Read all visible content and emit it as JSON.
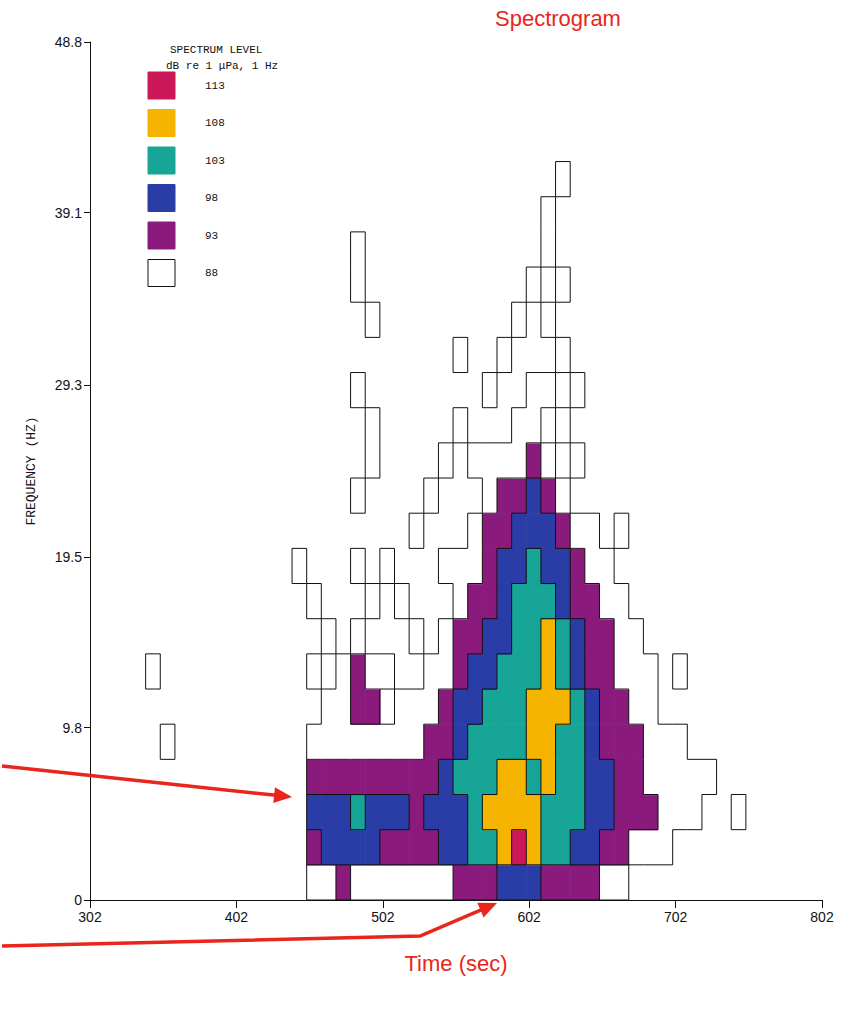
{
  "chart_data": {
    "type": "heatmap",
    "title": "Spectrogram",
    "x_label": "Time (sec)",
    "y_label": "FREQUENCY (HZ)",
    "xlim": [
      302,
      802
    ],
    "xticks": [
      302,
      402,
      502,
      602,
      702,
      802
    ],
    "ylim": [
      0,
      48.8
    ],
    "yticks": [
      0,
      9.8,
      19.5,
      29.3,
      39.1,
      48.8
    ],
    "grid": false,
    "legend": "upper left",
    "colorbar": {
      "title": [
        "SPECTRUM LEVEL",
        "dB re 1 μPa, 1 Hz"
      ],
      "levels": [
        113,
        108,
        103,
        98,
        93,
        88
      ],
      "colors": [
        "#cc1858",
        "#f5b400",
        "#16a596",
        "#2a3ca6",
        "#8a1a7c",
        "#ffffff"
      ]
    },
    "cells": [
      [
        345,
        13,
        90
      ],
      [
        355,
        9,
        90
      ],
      [
        445,
        19,
        90
      ],
      [
        455,
        1,
        90
      ],
      [
        455,
        3,
        95
      ],
      [
        455,
        5,
        100
      ],
      [
        455,
        7,
        95
      ],
      [
        455,
        9,
        90
      ],
      [
        455,
        13,
        90
      ],
      [
        455,
        17,
        90
      ],
      [
        465,
        1,
        90
      ],
      [
        465,
        3,
        100
      ],
      [
        465,
        5,
        100
      ],
      [
        465,
        7,
        95
      ],
      [
        465,
        9,
        90
      ],
      [
        465,
        11,
        90
      ],
      [
        465,
        15,
        90
      ],
      [
        475,
        1,
        95
      ],
      [
        475,
        3,
        100
      ],
      [
        475,
        5,
        100
      ],
      [
        475,
        7,
        95
      ],
      [
        475,
        9,
        90
      ],
      [
        475,
        11,
        90
      ],
      [
        475,
        13,
        90
      ],
      [
        485,
        1,
        90
      ],
      [
        485,
        3,
        100
      ],
      [
        485,
        5,
        105
      ],
      [
        485,
        7,
        95
      ],
      [
        485,
        9,
        90
      ],
      [
        485,
        11,
        95
      ],
      [
        485,
        13,
        95
      ],
      [
        485,
        15,
        90
      ],
      [
        485,
        19,
        90
      ],
      [
        485,
        23,
        90
      ],
      [
        485,
        29,
        90
      ],
      [
        485,
        35,
        90
      ],
      [
        485,
        37,
        90
      ],
      [
        495,
        1,
        90
      ],
      [
        495,
        3,
        100
      ],
      [
        495,
        5,
        100
      ],
      [
        495,
        7,
        95
      ],
      [
        495,
        9,
        90
      ],
      [
        495,
        11,
        95
      ],
      [
        495,
        13,
        90
      ],
      [
        495,
        17,
        90
      ],
      [
        495,
        25,
        90
      ],
      [
        495,
        27,
        90
      ],
      [
        495,
        33,
        90
      ],
      [
        505,
        1,
        90
      ],
      [
        505,
        3,
        95
      ],
      [
        505,
        5,
        100
      ],
      [
        505,
        7,
        95
      ],
      [
        505,
        9,
        90
      ],
      [
        505,
        13,
        90
      ],
      [
        505,
        19,
        90
      ],
      [
        515,
        1,
        90
      ],
      [
        515,
        3,
        95
      ],
      [
        515,
        5,
        100
      ],
      [
        515,
        7,
        95
      ],
      [
        515,
        9,
        90
      ],
      [
        515,
        11,
        90
      ],
      [
        515,
        17,
        90
      ],
      [
        525,
        1,
        90
      ],
      [
        525,
        3,
        95
      ],
      [
        525,
        5,
        95
      ],
      [
        525,
        7,
        95
      ],
      [
        525,
        9,
        90
      ],
      [
        525,
        11,
        90
      ],
      [
        525,
        15,
        90
      ],
      [
        525,
        21,
        90
      ],
      [
        535,
        1,
        90
      ],
      [
        535,
        3,
        95
      ],
      [
        535,
        5,
        100
      ],
      [
        535,
        7,
        95
      ],
      [
        535,
        9,
        95
      ],
      [
        535,
        11,
        90
      ],
      [
        535,
        13,
        90
      ],
      [
        535,
        23,
        90
      ],
      [
        545,
        1,
        90
      ],
      [
        545,
        3,
        100
      ],
      [
        545,
        5,
        100
      ],
      [
        545,
        7,
        100
      ],
      [
        545,
        9,
        95
      ],
      [
        545,
        11,
        95
      ],
      [
        545,
        13,
        90
      ],
      [
        545,
        15,
        90
      ],
      [
        545,
        19,
        90
      ],
      [
        545,
        25,
        90
      ],
      [
        555,
        1,
        95
      ],
      [
        555,
        3,
        100
      ],
      [
        555,
        5,
        100
      ],
      [
        555,
        7,
        105
      ],
      [
        555,
        9,
        100
      ],
      [
        555,
        11,
        100
      ],
      [
        555,
        13,
        95
      ],
      [
        555,
        15,
        95
      ],
      [
        555,
        17,
        90
      ],
      [
        555,
        19,
        90
      ],
      [
        555,
        27,
        90
      ],
      [
        555,
        31,
        90
      ],
      [
        565,
        1,
        95
      ],
      [
        565,
        3,
        105
      ],
      [
        565,
        5,
        105
      ],
      [
        565,
        7,
        105
      ],
      [
        565,
        9,
        105
      ],
      [
        565,
        11,
        100
      ],
      [
        565,
        13,
        100
      ],
      [
        565,
        15,
        95
      ],
      [
        565,
        17,
        95
      ],
      [
        565,
        19,
        90
      ],
      [
        565,
        21,
        90
      ],
      [
        565,
        25,
        90
      ],
      [
        575,
        1,
        95
      ],
      [
        575,
        3,
        105
      ],
      [
        575,
        5,
        110
      ],
      [
        575,
        7,
        105
      ],
      [
        575,
        9,
        105
      ],
      [
        575,
        11,
        105
      ],
      [
        575,
        13,
        100
      ],
      [
        575,
        15,
        100
      ],
      [
        575,
        17,
        95
      ],
      [
        575,
        19,
        95
      ],
      [
        575,
        21,
        95
      ],
      [
        575,
        23,
        90
      ],
      [
        575,
        25,
        90
      ],
      [
        575,
        29,
        90
      ],
      [
        585,
        1,
        100
      ],
      [
        585,
        3,
        110
      ],
      [
        585,
        5,
        110
      ],
      [
        585,
        7,
        110
      ],
      [
        585,
        9,
        105
      ],
      [
        585,
        11,
        105
      ],
      [
        585,
        13,
        105
      ],
      [
        585,
        15,
        100
      ],
      [
        585,
        17,
        100
      ],
      [
        585,
        19,
        100
      ],
      [
        585,
        21,
        95
      ],
      [
        585,
        23,
        95
      ],
      [
        585,
        25,
        90
      ],
      [
        585,
        31,
        90
      ],
      [
        595,
        1,
        100
      ],
      [
        595,
        3,
        114
      ],
      [
        595,
        5,
        110
      ],
      [
        595,
        7,
        110
      ],
      [
        595,
        9,
        105
      ],
      [
        595,
        11,
        105
      ],
      [
        595,
        13,
        105
      ],
      [
        595,
        15,
        105
      ],
      [
        595,
        17,
        105
      ],
      [
        595,
        19,
        100
      ],
      [
        595,
        21,
        100
      ],
      [
        595,
        23,
        95
      ],
      [
        595,
        25,
        90
      ],
      [
        595,
        27,
        90
      ],
      [
        595,
        33,
        90
      ],
      [
        605,
        1,
        100
      ],
      [
        605,
        3,
        110
      ],
      [
        605,
        5,
        110
      ],
      [
        605,
        7,
        105
      ],
      [
        605,
        9,
        110
      ],
      [
        605,
        11,
        110
      ],
      [
        605,
        13,
        105
      ],
      [
        605,
        15,
        105
      ],
      [
        605,
        17,
        105
      ],
      [
        605,
        19,
        105
      ],
      [
        605,
        21,
        100
      ],
      [
        605,
        23,
        100
      ],
      [
        605,
        25,
        95
      ],
      [
        605,
        27,
        90
      ],
      [
        605,
        29,
        90
      ],
      [
        605,
        35,
        90
      ],
      [
        615,
        1,
        95
      ],
      [
        615,
        3,
        105
      ],
      [
        615,
        5,
        105
      ],
      [
        615,
        7,
        110
      ],
      [
        615,
        9,
        110
      ],
      [
        615,
        11,
        110
      ],
      [
        615,
        13,
        110
      ],
      [
        615,
        15,
        110
      ],
      [
        615,
        17,
        105
      ],
      [
        615,
        19,
        100
      ],
      [
        615,
        21,
        100
      ],
      [
        615,
        23,
        95
      ],
      [
        615,
        25,
        90
      ],
      [
        615,
        29,
        90
      ],
      [
        615,
        33,
        90
      ],
      [
        615,
        37,
        90
      ],
      [
        615,
        39,
        90
      ],
      [
        625,
        1,
        95
      ],
      [
        625,
        3,
        105
      ],
      [
        625,
        5,
        105
      ],
      [
        625,
        7,
        105
      ],
      [
        625,
        9,
        105
      ],
      [
        625,
        11,
        110
      ],
      [
        625,
        13,
        105
      ],
      [
        625,
        15,
        105
      ],
      [
        625,
        17,
        100
      ],
      [
        625,
        19,
        100
      ],
      [
        625,
        21,
        95
      ],
      [
        625,
        23,
        90
      ],
      [
        625,
        27,
        90
      ],
      [
        625,
        31,
        90
      ],
      [
        625,
        35,
        90
      ],
      [
        625,
        41,
        90
      ],
      [
        635,
        1,
        95
      ],
      [
        635,
        3,
        100
      ],
      [
        635,
        5,
        105
      ],
      [
        635,
        7,
        105
      ],
      [
        635,
        9,
        105
      ],
      [
        635,
        11,
        105
      ],
      [
        635,
        13,
        100
      ],
      [
        635,
        15,
        100
      ],
      [
        635,
        17,
        95
      ],
      [
        635,
        19,
        95
      ],
      [
        635,
        21,
        90
      ],
      [
        635,
        25,
        90
      ],
      [
        635,
        29,
        90
      ],
      [
        645,
        1,
        95
      ],
      [
        645,
        3,
        100
      ],
      [
        645,
        5,
        100
      ],
      [
        645,
        7,
        100
      ],
      [
        645,
        9,
        100
      ],
      [
        645,
        11,
        100
      ],
      [
        645,
        13,
        95
      ],
      [
        645,
        15,
        95
      ],
      [
        645,
        17,
        95
      ],
      [
        645,
        19,
        90
      ],
      [
        645,
        21,
        90
      ],
      [
        655,
        1,
        90
      ],
      [
        655,
        3,
        95
      ],
      [
        655,
        5,
        100
      ],
      [
        655,
        7,
        100
      ],
      [
        655,
        9,
        95
      ],
      [
        655,
        11,
        95
      ],
      [
        655,
        13,
        95
      ],
      [
        655,
        15,
        95
      ],
      [
        655,
        17,
        90
      ],
      [
        655,
        19,
        90
      ],
      [
        665,
        1,
        90
      ],
      [
        665,
        3,
        95
      ],
      [
        665,
        5,
        95
      ],
      [
        665,
        7,
        95
      ],
      [
        665,
        9,
        95
      ],
      [
        665,
        11,
        95
      ],
      [
        665,
        13,
        90
      ],
      [
        665,
        15,
        90
      ],
      [
        665,
        17,
        90
      ],
      [
        665,
        21,
        90
      ],
      [
        675,
        3,
        90
      ],
      [
        675,
        5,
        95
      ],
      [
        675,
        7,
        95
      ],
      [
        675,
        9,
        95
      ],
      [
        675,
        11,
        90
      ],
      [
        675,
        13,
        90
      ],
      [
        675,
        15,
        90
      ],
      [
        685,
        3,
        90
      ],
      [
        685,
        5,
        95
      ],
      [
        685,
        7,
        90
      ],
      [
        685,
        9,
        90
      ],
      [
        685,
        11,
        90
      ],
      [
        685,
        13,
        90
      ],
      [
        695,
        3,
        90
      ],
      [
        695,
        5,
        90
      ],
      [
        695,
        7,
        90
      ],
      [
        695,
        9,
        90
      ],
      [
        705,
        5,
        90
      ],
      [
        705,
        7,
        90
      ],
      [
        705,
        9,
        90
      ],
      [
        705,
        13,
        90
      ],
      [
        715,
        5,
        90
      ],
      [
        715,
        7,
        90
      ],
      [
        725,
        7,
        90
      ],
      [
        745,
        5,
        90
      ]
    ]
  }
}
